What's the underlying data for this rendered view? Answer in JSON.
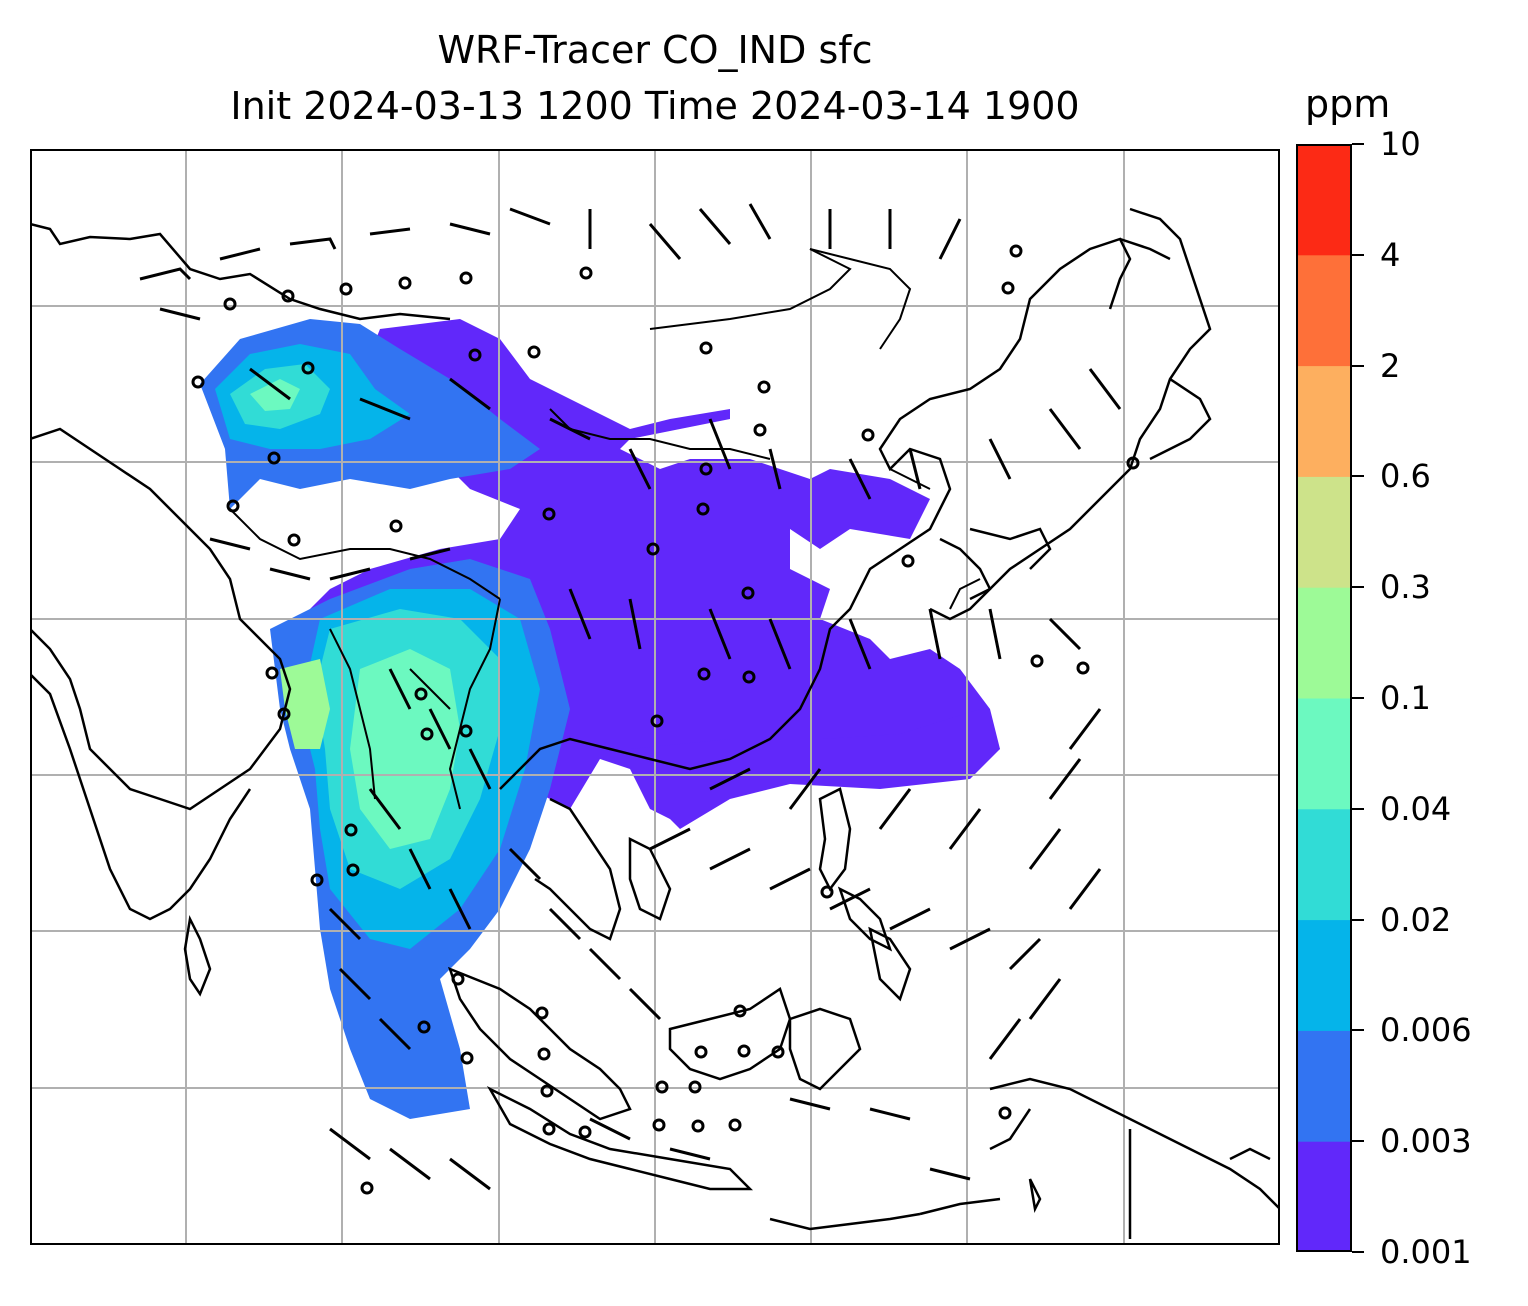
{
  "title_line1": "WRF-Tracer CO_IND sfc",
  "title_line2": "Init 2024-03-13 1200 Time 2024-03-14 1900",
  "colorbar": {
    "unit": "ppm",
    "levels": [
      "0.001",
      "0.003",
      "0.006",
      "0.02",
      "0.04",
      "0.1",
      "0.3",
      "0.6",
      "2",
      "4",
      "10"
    ],
    "colors": [
      "#6128fa",
      "#3274f2",
      "#05b4ea",
      "#31dcd6",
      "#6cf9c0",
      "#9dfa97",
      "#cde38a",
      "#fdaf5f",
      "#fe7039",
      "#fc2a15"
    ]
  },
  "map": {
    "grid_lines": {
      "vertical_count": 7,
      "horizontal_count": 6,
      "color": "#b0b0b0"
    },
    "features": [
      "coastline",
      "country-borders",
      "wind-barbs",
      "tracer-concentration"
    ]
  }
}
